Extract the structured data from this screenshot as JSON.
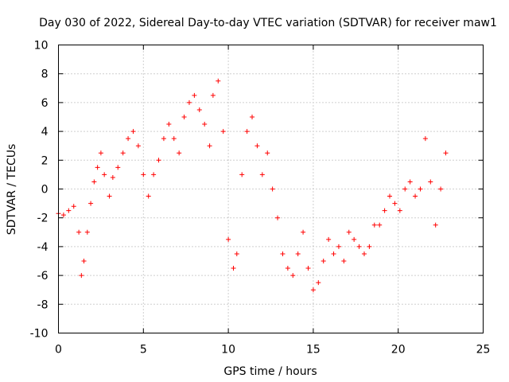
{
  "chart_data": {
    "type": "scatter",
    "title": "Day 030 of 2022, Sidereal Day-to-day VTEC variation (SDTVAR) for receiver maw1",
    "xlabel": "GPS time / hours",
    "ylabel": "SDTVAR / TECUs",
    "xlim": [
      0,
      25
    ],
    "ylim": [
      -10,
      10
    ],
    "xticks": [
      0,
      5,
      10,
      15,
      20,
      25
    ],
    "yticks": [
      -10,
      -8,
      -6,
      -4,
      -2,
      0,
      2,
      4,
      6,
      8,
      10
    ],
    "grid": true,
    "marker": "+",
    "color": "#ff0000",
    "series": [
      {
        "name": "SDTVAR",
        "x": [
          0.0,
          0.3,
          0.6,
          0.9,
          1.2,
          1.35,
          1.5,
          1.7,
          1.9,
          2.1,
          2.3,
          2.5,
          2.7,
          3.0,
          3.2,
          3.5,
          3.8,
          4.1,
          4.4,
          4.7,
          5.0,
          5.3,
          5.6,
          5.9,
          6.2,
          6.5,
          6.8,
          7.1,
          7.4,
          7.7,
          8.0,
          8.3,
          8.6,
          8.9,
          9.1,
          9.4,
          9.7,
          10.0,
          10.3,
          10.5,
          10.8,
          11.1,
          11.4,
          11.7,
          12.0,
          12.3,
          12.6,
          12.9,
          13.2,
          13.5,
          13.8,
          14.1,
          14.4,
          14.7,
          15.0,
          15.3,
          15.6,
          15.9,
          16.2,
          16.5,
          16.8,
          17.1,
          17.4,
          17.7,
          18.0,
          18.3,
          18.6,
          18.9,
          19.2,
          19.5,
          19.8,
          20.1,
          20.4,
          20.7,
          21.0,
          21.3,
          21.6,
          21.9,
          22.2,
          22.5,
          22.8
        ],
        "y": [
          -1.7,
          -1.8,
          -1.5,
          -1.2,
          -3.0,
          -6.0,
          -5.0,
          -3.0,
          -1.0,
          0.5,
          1.5,
          2.5,
          1.0,
          -0.5,
          0.8,
          1.5,
          2.5,
          3.5,
          4.0,
          3.0,
          1.0,
          -0.5,
          1.0,
          2.0,
          3.5,
          4.5,
          3.5,
          2.5,
          5.0,
          6.0,
          6.5,
          5.5,
          4.5,
          3.0,
          6.5,
          7.5,
          4.0,
          -3.5,
          -5.5,
          -4.5,
          1.0,
          4.0,
          5.0,
          3.0,
          1.0,
          2.5,
          0.0,
          -2.0,
          -4.5,
          -5.5,
          -6.0,
          -4.5,
          -3.0,
          -5.5,
          -7.0,
          -6.5,
          -5.0,
          -3.5,
          -4.5,
          -4.0,
          -5.0,
          -3.0,
          -3.5,
          -4.0,
          -4.5,
          -4.0,
          -2.5,
          -2.5,
          -1.5,
          -0.5,
          -1.0,
          -1.5,
          0.0,
          0.5,
          -0.5,
          0.0,
          3.5,
          0.5,
          -2.5,
          0.0,
          2.5
        ]
      }
    ]
  }
}
